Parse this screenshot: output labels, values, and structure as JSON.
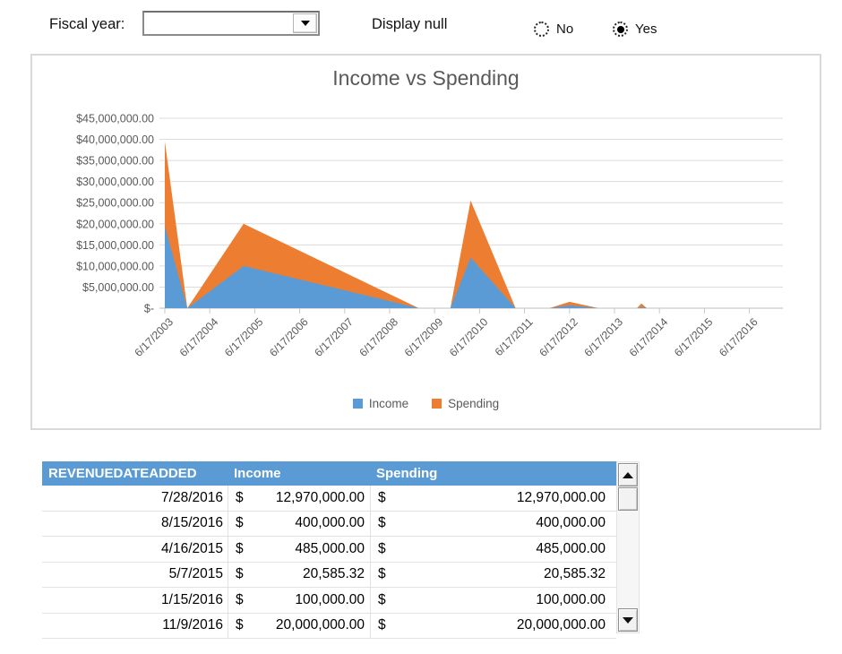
{
  "controls": {
    "fiscal_year_label": "Fiscal year:",
    "fiscal_year_value": "",
    "display_null_label": "Display null",
    "options": [
      {
        "label": "No",
        "selected": false
      },
      {
        "label": "Yes",
        "selected": true
      }
    ]
  },
  "chart_data": {
    "type": "area",
    "stacked": true,
    "title": "Income vs Spending",
    "grid": true,
    "legend_position": "bottom",
    "ylim": [
      0,
      45000000
    ],
    "y_tick_step": 5000000,
    "y_tick_labels": [
      "$45,000,000.00",
      "$40,000,000.00",
      "$35,000,000.00",
      "$30,000,000.00",
      "$25,000,000.00",
      "$20,000,000.00",
      "$15,000,000.00",
      "$10,000,000.00",
      "$5,000,000.00",
      "$-"
    ],
    "x_tick_labels": [
      "6/17/2003",
      "6/17/2004",
      "6/17/2005",
      "6/17/2006",
      "6/17/2007",
      "6/17/2008",
      "6/17/2009",
      "6/17/2010",
      "6/17/2011",
      "6/17/2012",
      "6/17/2013",
      "6/17/2014",
      "6/17/2015",
      "6/17/2016"
    ],
    "series": [
      {
        "name": "Income",
        "color": "#5B9BD5"
      },
      {
        "name": "Spending",
        "color": "#ED7D31"
      }
    ],
    "points": [
      {
        "x_year": 2003.0,
        "income": 19500000,
        "spending": 20000000
      },
      {
        "x_year": 2003.5,
        "income": 0,
        "spending": 0
      },
      {
        "x_year": 2004.75,
        "income": 10000000,
        "spending": 10000000
      },
      {
        "x_year": 2008.65,
        "income": 0,
        "spending": 0
      },
      {
        "x_year": 2009.35,
        "income": 0,
        "spending": 0
      },
      {
        "x_year": 2009.8,
        "income": 12000000,
        "spending": 13500000
      },
      {
        "x_year": 2010.8,
        "income": 0,
        "spending": 0
      },
      {
        "x_year": 2011.55,
        "income": 0,
        "spending": 0
      },
      {
        "x_year": 2012.0,
        "income": 700000,
        "spending": 800000
      },
      {
        "x_year": 2012.65,
        "income": 0,
        "spending": 0
      },
      {
        "x_year": 2013.5,
        "income": 0,
        "spending": 0
      },
      {
        "x_year": 2013.6,
        "income": 300000,
        "spending": 800000
      },
      {
        "x_year": 2013.72,
        "income": 0,
        "spending": 0
      },
      {
        "x_year": 2016.0,
        "income": 0,
        "spending": 0
      }
    ]
  },
  "table": {
    "currency_symbol": "$",
    "headers": [
      "REVENUEDATEADDED",
      "Income",
      "Spending"
    ],
    "header_bg": "#5B9BD5",
    "rows": [
      {
        "date": "7/28/2016",
        "income": "12,970,000.00",
        "spending": "12,970,000.00"
      },
      {
        "date": "8/15/2016",
        "income": "400,000.00",
        "spending": "400,000.00"
      },
      {
        "date": "4/16/2015",
        "income": "485,000.00",
        "spending": "485,000.00"
      },
      {
        "date": "5/7/2015",
        "income": "20,585.32",
        "spending": "20,585.32"
      },
      {
        "date": "1/15/2016",
        "income": "100,000.00",
        "spending": "100,000.00"
      },
      {
        "date": "11/9/2016",
        "income": "20,000,000.00",
        "spending": "20,000,000.00"
      }
    ]
  }
}
